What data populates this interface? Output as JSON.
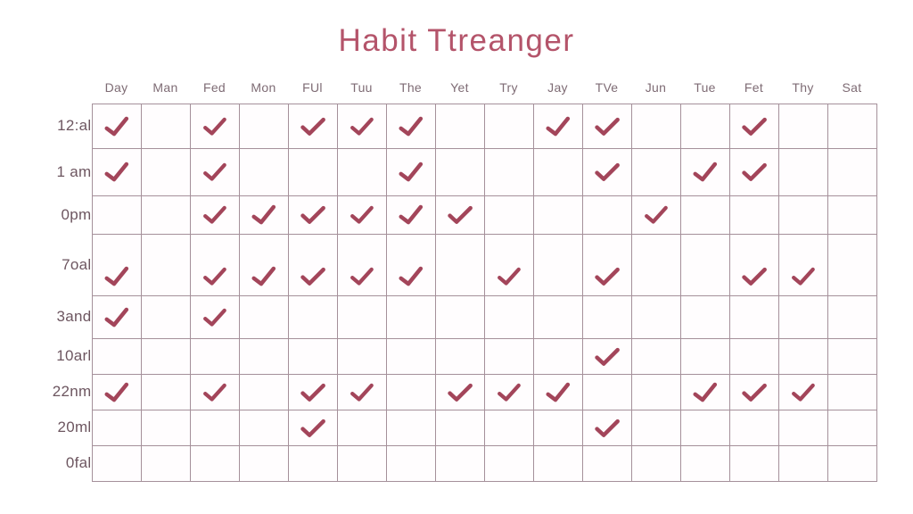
{
  "title": "Habit Ttreanger",
  "colors": {
    "title": "#b4546a",
    "header_text": "#7e6b74",
    "row_label_text": "#6d5660",
    "grid_line": "#a5909a",
    "check": "#a3455a",
    "background": "#ffffff"
  },
  "check_icon": "check-icon",
  "columns": [
    "Day",
    "Man",
    "Fed",
    "Mon",
    "FUl",
    "Tuu",
    "The",
    "Yet",
    "Try",
    "Jay",
    "TVe",
    "Jun",
    "Tue",
    "Fet",
    "Thy",
    "Sat"
  ],
  "rows": [
    {
      "label": "12:al",
      "checks": [
        1,
        0,
        1,
        0,
        1,
        1,
        1,
        0,
        0,
        1,
        1,
        0,
        0,
        1,
        0,
        0
      ]
    },
    {
      "label": "1 am",
      "checks": [
        1,
        0,
        1,
        0,
        0,
        0,
        1,
        0,
        0,
        0,
        1,
        0,
        1,
        1,
        0,
        0
      ]
    },
    {
      "label": "0pm",
      "checks": [
        0,
        0,
        1,
        1,
        1,
        1,
        1,
        1,
        0,
        0,
        0,
        1,
        0,
        0,
        0,
        0
      ]
    },
    {
      "label": "7oal",
      "checks": [
        1,
        0,
        1,
        1,
        1,
        1,
        1,
        0,
        1,
        0,
        1,
        0,
        0,
        1,
        1,
        0
      ]
    },
    {
      "label": "3and",
      "checks": [
        1,
        0,
        1,
        0,
        0,
        0,
        0,
        0,
        0,
        0,
        0,
        0,
        0,
        0,
        0,
        0
      ]
    },
    {
      "label": "10arl",
      "checks": [
        0,
        0,
        0,
        0,
        0,
        0,
        0,
        0,
        0,
        0,
        1,
        0,
        0,
        0,
        0,
        0
      ]
    },
    {
      "label": "22nm",
      "checks": [
        1,
        0,
        1,
        0,
        1,
        1,
        0,
        1,
        1,
        1,
        0,
        0,
        1,
        1,
        1,
        0
      ]
    },
    {
      "label": "20ml",
      "checks": [
        0,
        0,
        0,
        0,
        1,
        0,
        0,
        0,
        0,
        0,
        1,
        0,
        0,
        0,
        0,
        0
      ]
    },
    {
      "label": "0fal",
      "checks": [
        0,
        0,
        0,
        0,
        0,
        0,
        0,
        0,
        0,
        0,
        0,
        0,
        0,
        0,
        0,
        0
      ]
    }
  ]
}
